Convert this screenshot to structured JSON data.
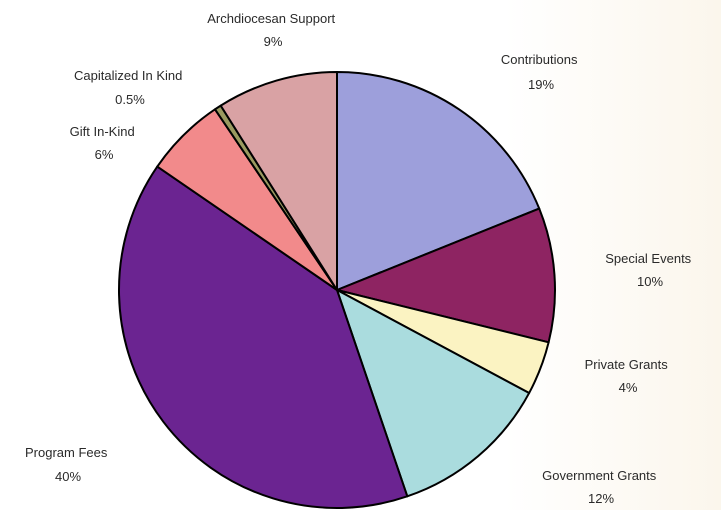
{
  "chart_data": {
    "type": "pie",
    "title": "",
    "legend": "none",
    "slices": [
      {
        "label": "Contributions",
        "value": 19,
        "value_label": "19%",
        "color": "#9d9fdb"
      },
      {
        "label": "Special Events",
        "value": 10,
        "value_label": "10%",
        "color": "#8e2462"
      },
      {
        "label": "Private Grants",
        "value": 4,
        "value_label": "4%",
        "color": "#fbf3c2"
      },
      {
        "label": "Government Grants",
        "value": 12,
        "value_label": "12%",
        "color": "#aadcde"
      },
      {
        "label": "Program Fees",
        "value": 40,
        "value_label": "40%",
        "color": "#6b2491"
      },
      {
        "label": "Gift In-Kind",
        "value": 6,
        "value_label": "6%",
        "color": "#f28a8b"
      },
      {
        "label": "Capitalized In Kind",
        "value": 0.5,
        "value_label": "0.5%",
        "color": "#9a9a60"
      },
      {
        "label": "Archdiocesan Support",
        "value": 9,
        "value_label": "9%",
        "color": "#d9a2a4"
      }
    ]
  }
}
